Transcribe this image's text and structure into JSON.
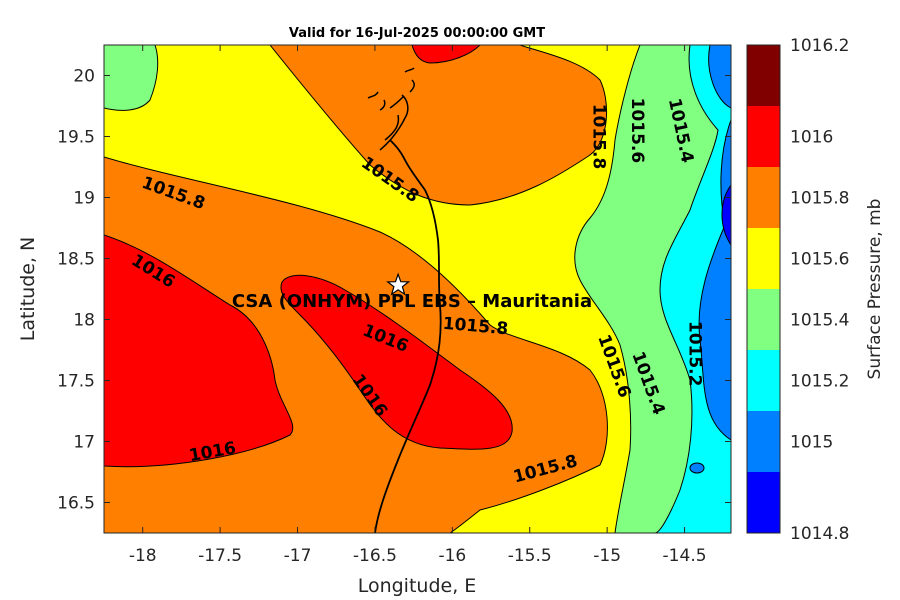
{
  "chart_data": {
    "type": "contour",
    "title": "Valid for 16-Jul-2025 00:00:00 GMT",
    "xlabel": "Longitude, E",
    "ylabel": "Latitude, N",
    "xlim": [
      -18.25,
      -14.2
    ],
    "ylim": [
      16.25,
      20.25
    ],
    "xticks": [
      "-18",
      "-17.5",
      "-17",
      "-16.5",
      "-16",
      "-15.5",
      "-15",
      "-14.5"
    ],
    "yticks": [
      "16.5",
      "17",
      "17.5",
      "18",
      "18.5",
      "19",
      "19.5",
      "20"
    ],
    "xtick_values": [
      -18,
      -17.5,
      -17,
      -16.5,
      -16,
      -15.5,
      -15,
      -14.5
    ],
    "ytick_values": [
      16.5,
      17,
      17.5,
      18,
      18.5,
      19,
      19.5,
      20
    ],
    "colorbar": {
      "label": "Surface Pressure, mb",
      "levels": [
        "1016.2",
        "1016",
        "1015.8",
        "1015.6",
        "1015.4",
        "1015.2",
        "1015",
        "1014.8"
      ],
      "colors": [
        "#800000",
        "#ff0000",
        "#ff8000",
        "#ffff00",
        "#80ff80",
        "#00ffff",
        "#0080ff",
        "#0000ff"
      ]
    },
    "contour_labels": [
      {
        "text": "1015.8",
        "lon": -17.8,
        "lat": 19.04,
        "angle": 20
      },
      {
        "text": "1015.8",
        "lon": -16.4,
        "lat": 19.15,
        "angle": 35
      },
      {
        "text": "1015.8",
        "lon": -15.05,
        "lat": 19.5,
        "angle": 90
      },
      {
        "text": "1015.6",
        "lon": -14.8,
        "lat": 19.55,
        "angle": 90
      },
      {
        "text": "1015.4",
        "lon": -14.52,
        "lat": 19.55,
        "angle": 78
      },
      {
        "text": "1016",
        "lon": -17.93,
        "lat": 18.4,
        "angle": 32
      },
      {
        "text": "1016",
        "lon": -16.43,
        "lat": 17.85,
        "angle": 22
      },
      {
        "text": "1016",
        "lon": -16.53,
        "lat": 17.38,
        "angle": 55
      },
      {
        "text": "1016",
        "lon": -17.55,
        "lat": 16.92,
        "angle": -10
      },
      {
        "text": "1015.8",
        "lon": -15.85,
        "lat": 17.95,
        "angle": 5
      },
      {
        "text": "1015.6",
        "lon": -14.95,
        "lat": 17.62,
        "angle": 70
      },
      {
        "text": "1015.4",
        "lon": -14.73,
        "lat": 17.48,
        "angle": 70
      },
      {
        "text": "1015.2",
        "lon": -14.43,
        "lat": 17.72,
        "angle": 90
      },
      {
        "text": "1015.8",
        "lon": -15.4,
        "lat": 16.78,
        "angle": -15
      }
    ],
    "station": {
      "name": "CSA (ONHYM) PPL EBS  – Mauritania",
      "lon": -16.35,
      "lat": 18.28
    }
  }
}
